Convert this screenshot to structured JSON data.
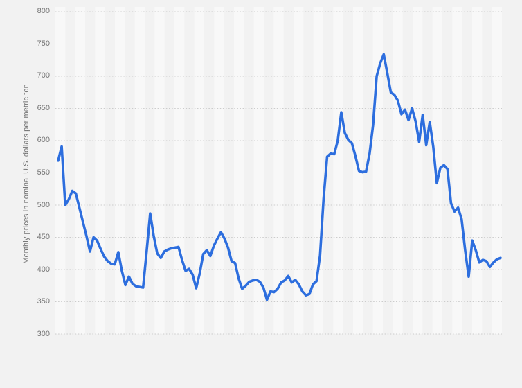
{
  "page": {
    "background_color": "#f2f2f2",
    "text_color": "#747474"
  },
  "chart_data": {
    "type": "line",
    "title": "",
    "ylabel": "Monthly prices in nominal U.S. dollars per metric ton",
    "xlabel": "",
    "x_tick_labels_visible": false,
    "yticks": [
      800,
      750,
      700,
      650,
      600,
      550,
      500,
      450,
      400,
      350,
      300
    ],
    "ylim": [
      300,
      800
    ],
    "grid": "dotted-horizontal",
    "legend": "none",
    "background_stripes": {
      "orientation": "vertical",
      "light_color": "#f8f8f8",
      "dark_color": "#f2f2f2",
      "count": 45
    },
    "gridline_color": "#cbcbcb",
    "series": [
      {
        "name": "monthly-price",
        "color": "#2d6ede",
        "stroke_width": 3.6,
        "values": [
          569,
          591,
          500,
          509,
          522,
          518,
          496,
          474,
          452,
          428,
          450,
          445,
          432,
          420,
          413,
          409,
          408,
          427,
          398,
          376,
          389,
          378,
          374,
          373,
          372,
          428,
          487,
          452,
          425,
          418,
          428,
          431,
          433,
          434,
          435,
          415,
          398,
          401,
          392,
          371,
          394,
          424,
          430,
          421,
          437,
          448,
          458,
          448,
          434,
          413,
          410,
          386,
          370,
          375,
          381,
          383,
          384,
          381,
          372,
          353,
          366,
          365,
          370,
          380,
          383,
          390,
          380,
          384,
          377,
          366,
          360,
          362,
          377,
          382,
          422,
          510,
          575,
          580,
          579,
          600,
          644,
          612,
          601,
          596,
          576,
          553,
          551,
          552,
          580,
          625,
          700,
          720,
          734,
          705,
          675,
          671,
          662,
          641,
          648,
          632,
          650,
          630,
          598,
          640,
          593,
          629,
          590,
          534,
          558,
          562,
          556,
          503,
          490,
          496,
          478,
          430,
          389,
          445,
          430,
          411,
          415,
          413,
          404,
          411,
          416,
          418
        ]
      }
    ]
  }
}
